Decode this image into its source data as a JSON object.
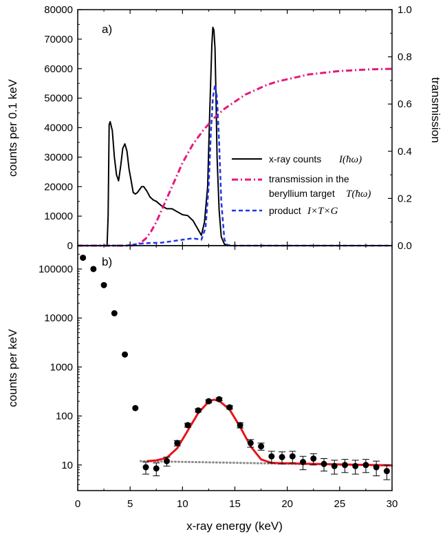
{
  "chart_data": [
    {
      "panel_label": "a)",
      "type": "line",
      "xlim": [
        0,
        30
      ],
      "ylim": [
        0,
        80000
      ],
      "y2lim": [
        0,
        1.0
      ],
      "ylabel": "counts per 0.1 keV",
      "y2label": "transmission",
      "y_ticks": [
        "0",
        "10000",
        "20000",
        "30000",
        "40000",
        "50000",
        "60000",
        "70000",
        "80000"
      ],
      "y2_ticks": [
        "0.0",
        "0.2",
        "0.4",
        "0.6",
        "0.8",
        "1.0"
      ],
      "legend": [
        {
          "text": "x-ray counts",
          "math": "I(ħω)",
          "color": "#000000",
          "style": "solid"
        },
        {
          "text": "transmission in the",
          "text2": "beryllium target",
          "math": "T(ħω)",
          "color": "#e6167f",
          "style": "dashdot"
        },
        {
          "text": "product",
          "math": "I×T×G",
          "color": "#1f35e8",
          "style": "dashed"
        }
      ],
      "series": [
        {
          "name": "x-ray counts",
          "color": "#000000",
          "axis": "left",
          "x": [
            0,
            2.8,
            2.9,
            3.0,
            3.1,
            3.3,
            3.5,
            3.7,
            3.9,
            4.1,
            4.3,
            4.5,
            4.7,
            4.9,
            5.1,
            5.3,
            5.5,
            5.7,
            5.9,
            6.1,
            6.3,
            6.6,
            6.9,
            7.2,
            7.5,
            8.0,
            8.5,
            9.0,
            9.5,
            10.0,
            10.5,
            11.0,
            11.4,
            11.8,
            12.1,
            12.4,
            12.6,
            12.8,
            12.9,
            13.0,
            13.1,
            13.2,
            13.3,
            13.5,
            13.7,
            14.0,
            14.5,
            30
          ],
          "y": [
            0,
            0,
            10000,
            41000,
            42000,
            39000,
            30000,
            24000,
            22000,
            27000,
            33000,
            34500,
            32000,
            26000,
            22000,
            18000,
            17500,
            18000,
            19000,
            20000,
            20000,
            18500,
            16500,
            15500,
            15000,
            13500,
            12500,
            12500,
            11500,
            10500,
            10200,
            8500,
            6000,
            3500,
            8000,
            20000,
            45000,
            68000,
            74000,
            73000,
            67000,
            50000,
            30000,
            12000,
            3000,
            500,
            0,
            0
          ]
        },
        {
          "name": "transmission in the beryllium target",
          "color": "#e6167f",
          "axis": "right",
          "x": [
            0,
            5.0,
            5.5,
            6.0,
            6.5,
            7.0,
            7.5,
            8.0,
            8.5,
            9.0,
            9.5,
            10.0,
            10.5,
            11.0,
            11.5,
            12.0,
            12.5,
            13.0,
            13.5,
            14.0,
            15.0,
            16.0,
            17.0,
            18.0,
            19.0,
            20.0,
            21.0,
            22.0,
            23.0,
            24.0,
            25.0,
            26.0,
            27.0,
            28.0,
            29.0,
            30.0
          ],
          "y": [
            0.0,
            0.0,
            0.003,
            0.012,
            0.03,
            0.06,
            0.1,
            0.15,
            0.2,
            0.25,
            0.3,
            0.35,
            0.39,
            0.43,
            0.46,
            0.49,
            0.515,
            0.54,
            0.56,
            0.58,
            0.61,
            0.64,
            0.66,
            0.68,
            0.695,
            0.705,
            0.715,
            0.725,
            0.73,
            0.735,
            0.74,
            0.742,
            0.745,
            0.747,
            0.748,
            0.749
          ]
        },
        {
          "name": "product",
          "color": "#1f35e8",
          "axis": "left",
          "x": [
            0,
            4.5,
            5.0,
            6.0,
            7.0,
            8.0,
            9.0,
            10.0,
            11.0,
            11.8,
            12.2,
            12.5,
            12.7,
            12.9,
            13.1,
            13.3,
            13.5,
            13.7,
            14.0,
            14.3,
            14.8,
            30
          ],
          "y": [
            0,
            0,
            200,
            700,
            900,
            1000,
            1500,
            2000,
            2500,
            2000,
            6000,
            20000,
            38000,
            50000,
            54500,
            50000,
            35000,
            15000,
            2000,
            200,
            0,
            0
          ]
        }
      ]
    },
    {
      "panel_label": "b)",
      "type": "scatter",
      "xlabel": "x-ray energy (keV)",
      "ylabel": "counts per keV",
      "x_ticks": [
        "0",
        "5",
        "10",
        "15",
        "20",
        "25",
        "30"
      ],
      "xlim": [
        0,
        30
      ],
      "ylim": [
        3,
        300000
      ],
      "yscale": "log",
      "y_ticks": [
        "10",
        "100",
        "1000",
        "10000",
        "100000"
      ],
      "points": [
        {
          "x": 0.5,
          "y": 170000
        },
        {
          "x": 1.5,
          "y": 100000
        },
        {
          "x": 2.5,
          "y": 47000
        },
        {
          "x": 3.5,
          "y": 12500
        },
        {
          "x": 4.5,
          "y": 1800
        },
        {
          "x": 5.5,
          "y": 145
        },
        {
          "x": 6.5,
          "y": 9,
          "err": 2.5
        },
        {
          "x": 7.5,
          "y": 8.5,
          "err": 2.5
        },
        {
          "x": 8.5,
          "y": 12,
          "err": 2.5
        },
        {
          "x": 9.5,
          "y": 28,
          "err": 3.5
        },
        {
          "x": 10.5,
          "y": 65,
          "err": 6
        },
        {
          "x": 11.5,
          "y": 130,
          "err": 10
        },
        {
          "x": 12.5,
          "y": 200,
          "err": 14
        },
        {
          "x": 13.5,
          "y": 220,
          "err": 15
        },
        {
          "x": 14.5,
          "y": 150,
          "err": 12
        },
        {
          "x": 15.5,
          "y": 65,
          "err": 8
        },
        {
          "x": 16.5,
          "y": 28,
          "err": 5
        },
        {
          "x": 17.5,
          "y": 24,
          "err": 4
        },
        {
          "x": 18.5,
          "y": 15,
          "err": 4
        },
        {
          "x": 19.5,
          "y": 14.5,
          "err": 4
        },
        {
          "x": 20.5,
          "y": 15,
          "err": 4
        },
        {
          "x": 21.5,
          "y": 11.5,
          "err": 3.5
        },
        {
          "x": 22.5,
          "y": 13.5,
          "err": 3.5
        },
        {
          "x": 23.5,
          "y": 10.5,
          "err": 3
        },
        {
          "x": 24.5,
          "y": 9.5,
          "err": 3
        },
        {
          "x": 25.5,
          "y": 10,
          "err": 3
        },
        {
          "x": 26.5,
          "y": 9.5,
          "err": 3
        },
        {
          "x": 27.5,
          "y": 10,
          "err": 3
        },
        {
          "x": 28.5,
          "y": 9,
          "err": 3
        },
        {
          "x": 29.5,
          "y": 7.5,
          "err": 2.5
        }
      ],
      "fit": {
        "color": "#e8121b",
        "x": [
          6.6,
          7.5,
          8.5,
          9.5,
          10.5,
          11.5,
          12.5,
          13.0,
          13.5,
          14.5,
          15.5,
          16.5,
          17.5,
          18.5,
          20.0,
          22.0,
          24.0,
          26.0,
          28.0,
          30.0
        ],
        "y": [
          12,
          12.4,
          14,
          22,
          50,
          115,
          195,
          215,
          205,
          135,
          60,
          24,
          13,
          11,
          10.8,
          10.6,
          10.4,
          10.2,
          10.0,
          9.8
        ]
      },
      "background": {
        "color": "#8c8c8c",
        "x": [
          6.0,
          30.0
        ],
        "y": [
          12,
          9.7
        ]
      }
    }
  ]
}
